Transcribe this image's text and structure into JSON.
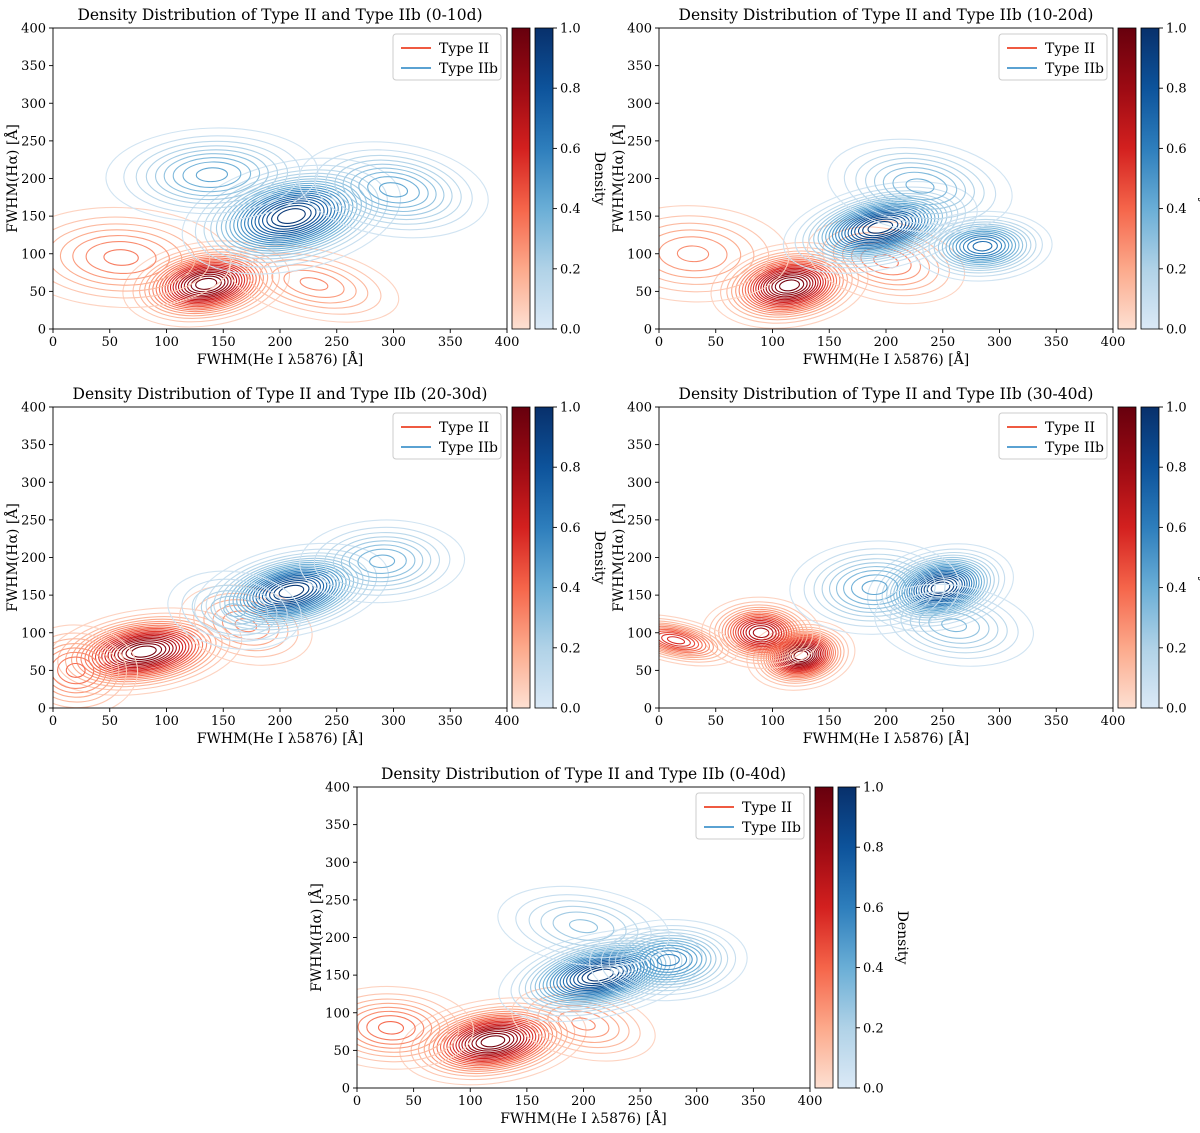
{
  "figure": {
    "series_names": [
      "Type II",
      "Type IIb"
    ],
    "colorbar_label": "Density",
    "colorbar_ticks": [
      "0.0",
      "0.2",
      "0.4",
      "0.6",
      "0.8",
      "1.0"
    ],
    "colors": {
      "type_ii_legend": "#ef5a41",
      "type_iib_legend": "#5aa2d2",
      "reds": [
        "#fde0d2",
        "#fca98b",
        "#f5654a",
        "#d3201f",
        "#9c0a13",
        "#67000d"
      ],
      "blues": [
        "#dbe9f6",
        "#b0d2e7",
        "#6aaed6",
        "#2e7ebc",
        "#0d539b",
        "#08306b"
      ]
    }
  },
  "chart_data": [
    {
      "type": "contour",
      "title": "Density Distribution of Type II and Type IIb (0-10d)",
      "xlabel": "FWHM(He I λ5876) [Å]",
      "ylabel": "FWHM(Hα) [Å]",
      "xlim": [
        0,
        400
      ],
      "ylim": [
        0,
        400
      ],
      "xticks": [
        0,
        50,
        100,
        150,
        200,
        250,
        300,
        350,
        400
      ],
      "yticks": [
        0,
        50,
        100,
        150,
        200,
        250,
        300,
        350,
        400
      ],
      "legend": "top-right",
      "series": [
        {
          "name": "Type II",
          "colormap": "Reds",
          "peaks": [
            {
              "x": 135,
              "y": 60,
              "w": 1.0
            },
            {
              "x": 60,
              "y": 95,
              "w": 0.35
            },
            {
              "x": 230,
              "y": 60,
              "w": 0.3
            }
          ]
        },
        {
          "name": "Type IIb",
          "colormap": "Blues",
          "peaks": [
            {
              "x": 210,
              "y": 150,
              "w": 1.0
            },
            {
              "x": 140,
              "y": 205,
              "w": 0.45
            },
            {
              "x": 300,
              "y": 185,
              "w": 0.45
            }
          ]
        }
      ],
      "colorbar": {
        "label": "Density",
        "range": [
          0,
          1
        ]
      }
    },
    {
      "type": "contour",
      "title": "Density Distribution of Type II and Type IIb (10-20d)",
      "xlabel": "FWHM(He I λ5876) [Å]",
      "ylabel": "FWHM(Hα) [Å]",
      "xlim": [
        0,
        400
      ],
      "ylim": [
        0,
        400
      ],
      "xticks": [
        0,
        50,
        100,
        150,
        200,
        250,
        300,
        350,
        400
      ],
      "yticks": [
        0,
        50,
        100,
        150,
        200,
        250,
        300,
        350,
        400
      ],
      "legend": "top-right",
      "series": [
        {
          "name": "Type II",
          "colormap": "Reds",
          "peaks": [
            {
              "x": 115,
              "y": 58,
              "w": 1.0
            },
            {
              "x": 30,
              "y": 100,
              "w": 0.3
            },
            {
              "x": 200,
              "y": 90,
              "w": 0.35
            }
          ]
        },
        {
          "name": "Type IIb",
          "colormap": "Blues",
          "peaks": [
            {
              "x": 195,
              "y": 135,
              "w": 1.0
            },
            {
              "x": 285,
              "y": 110,
              "w": 0.7
            },
            {
              "x": 230,
              "y": 190,
              "w": 0.4
            }
          ]
        }
      ],
      "colorbar": {
        "label": "Density",
        "range": [
          0,
          1
        ]
      }
    },
    {
      "type": "contour",
      "title": "Density Distribution of Type II and Type IIb (20-30d)",
      "xlabel": "FWHM(He I λ5876) [Å]",
      "ylabel": "FWHM(Hα) [Å]",
      "xlim": [
        0,
        400
      ],
      "ylim": [
        0,
        400
      ],
      "xticks": [
        0,
        50,
        100,
        150,
        200,
        250,
        300,
        350,
        400
      ],
      "yticks": [
        0,
        50,
        100,
        150,
        200,
        250,
        300,
        350,
        400
      ],
      "legend": "top-right",
      "series": [
        {
          "name": "Type II",
          "colormap": "Reds",
          "peaks": [
            {
              "x": 80,
              "y": 75,
              "w": 1.0
            },
            {
              "x": 20,
              "y": 50,
              "w": 0.4
            },
            {
              "x": 170,
              "y": 110,
              "w": 0.3
            }
          ]
        },
        {
          "name": "Type IIb",
          "colormap": "Blues",
          "peaks": [
            {
              "x": 210,
              "y": 155,
              "w": 1.0
            },
            {
              "x": 290,
              "y": 195,
              "w": 0.4
            },
            {
              "x": 160,
              "y": 130,
              "w": 0.3
            }
          ]
        }
      ],
      "colorbar": {
        "label": "Density",
        "range": [
          0,
          1
        ]
      }
    },
    {
      "type": "contour",
      "title": "Density Distribution of Type II and Type IIb (30-40d)",
      "xlabel": "FWHM(He I λ5876) [Å]",
      "ylabel": "FWHM(Hα) [Å]",
      "xlim": [
        0,
        400
      ],
      "ylim": [
        0,
        400
      ],
      "xticks": [
        0,
        50,
        100,
        150,
        200,
        250,
        300,
        350,
        400
      ],
      "yticks": [
        0,
        50,
        100,
        150,
        200,
        250,
        300,
        350,
        400
      ],
      "legend": "top-right",
      "series": [
        {
          "name": "Type II",
          "colormap": "Reds",
          "peaks": [
            {
              "x": 125,
              "y": 70,
              "w": 1.0
            },
            {
              "x": 90,
              "y": 100,
              "w": 0.8
            },
            {
              "x": 15,
              "y": 90,
              "w": 0.6
            }
          ]
        },
        {
          "name": "Type IIb",
          "colormap": "Blues",
          "peaks": [
            {
              "x": 248,
              "y": 160,
              "w": 1.0
            },
            {
              "x": 190,
              "y": 160,
              "w": 0.45
            },
            {
              "x": 260,
              "y": 110,
              "w": 0.35
            }
          ]
        }
      ],
      "colorbar": {
        "label": "Density",
        "range": [
          0,
          1
        ]
      }
    },
    {
      "type": "contour",
      "title": "Density Distribution of Type II and Type IIb (0-40d)",
      "xlabel": "FWHM(He I λ5876) [Å]",
      "ylabel": "FWHM(Hα) [Å]",
      "xlim": [
        0,
        400
      ],
      "ylim": [
        0,
        400
      ],
      "xticks": [
        0,
        50,
        100,
        150,
        200,
        250,
        300,
        350,
        400
      ],
      "yticks": [
        0,
        50,
        100,
        150,
        200,
        250,
        300,
        350,
        400
      ],
      "legend": "top-right",
      "series": [
        {
          "name": "Type II",
          "colormap": "Reds",
          "peaks": [
            {
              "x": 120,
              "y": 62,
              "w": 1.0
            },
            {
              "x": 30,
              "y": 80,
              "w": 0.4
            },
            {
              "x": 200,
              "y": 85,
              "w": 0.3
            }
          ]
        },
        {
          "name": "Type IIb",
          "colormap": "Blues",
          "peaks": [
            {
              "x": 215,
              "y": 150,
              "w": 1.0
            },
            {
              "x": 275,
              "y": 170,
              "w": 0.6
            },
            {
              "x": 200,
              "y": 215,
              "w": 0.3
            }
          ]
        }
      ],
      "colorbar": {
        "label": "Density",
        "range": [
          0,
          1
        ]
      }
    }
  ]
}
